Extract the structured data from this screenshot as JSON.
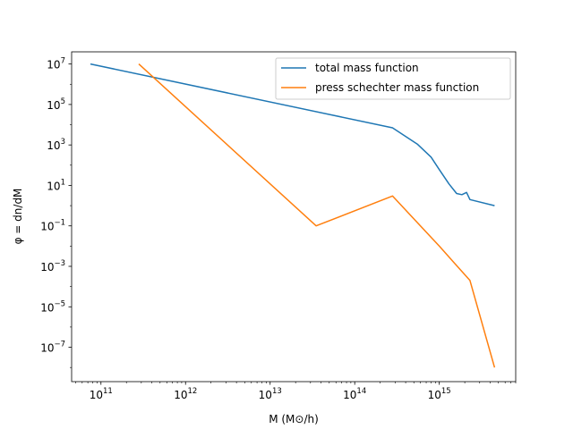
{
  "chart_data": {
    "type": "line",
    "xscale": "log",
    "yscale": "log",
    "xlabel": "M (M⊙/h)",
    "ylabel": "φ = dn/dM",
    "xlim": [
      45000000000.0,
      8000000000000000.0
    ],
    "ylim": [
      2e-09,
      40000000.0
    ],
    "grid": false,
    "legend_position": "top-right",
    "xticks": [
      {
        "value": 100000000000.0,
        "base": "10",
        "exp": "11"
      },
      {
        "value": 1000000000000.0,
        "base": "10",
        "exp": "12"
      },
      {
        "value": 10000000000000.0,
        "base": "10",
        "exp": "13"
      },
      {
        "value": 100000000000000.0,
        "base": "10",
        "exp": "14"
      },
      {
        "value": 1000000000000000.0,
        "base": "10",
        "exp": "15"
      }
    ],
    "yticks": [
      {
        "value": 10000000.0,
        "base": "10",
        "exp": "7"
      },
      {
        "value": 100000.0,
        "base": "10",
        "exp": "5"
      },
      {
        "value": 1000.0,
        "base": "10",
        "exp": "3"
      },
      {
        "value": 10.0,
        "base": "10",
        "exp": "1"
      },
      {
        "value": 0.1,
        "base": "10",
        "exp": "−1"
      },
      {
        "value": 0.001,
        "base": "10",
        "exp": "−3"
      },
      {
        "value": 1e-05,
        "base": "10",
        "exp": "−5"
      },
      {
        "value": 1e-07,
        "base": "10",
        "exp": "−7"
      }
    ],
    "series": [
      {
        "name": "total mass function",
        "color": "#1f77b4",
        "x": [
          75000000000.0,
          280000000000000.0,
          550000000000000.0,
          800000000000000.0,
          1000000000000000.0,
          1300000000000000.0,
          1600000000000000.0,
          1850000000000000.0,
          2100000000000000.0,
          2300000000000000.0,
          4500000000000000.0
        ],
        "y": [
          10000000.0,
          7000.0,
          1100.0,
          250.0,
          60.0,
          12.0,
          4,
          3.5,
          4.5,
          2,
          1
        ]
      },
      {
        "name": "press schechter mass function",
        "color": "#ff7f0e",
        "x": [
          280000000000.0,
          35000000000000.0,
          280000000000000.0,
          1000000000000000.0,
          2300000000000000.0,
          4500000000000000.0
        ],
        "y": [
          10000000.0,
          0.1,
          3,
          0.01,
          0.0002,
          1e-08
        ]
      }
    ]
  }
}
